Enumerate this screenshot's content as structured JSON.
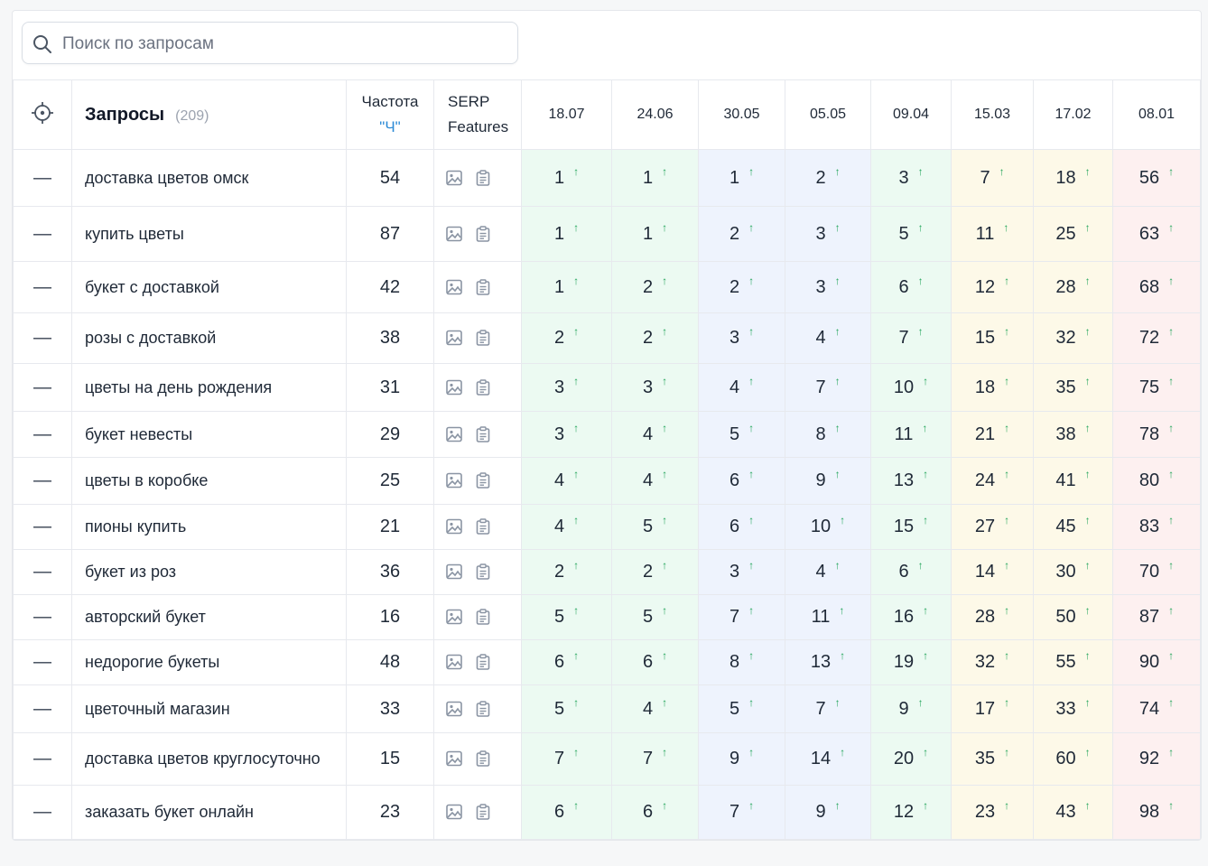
{
  "search": {
    "placeholder": "Поиск по запросам"
  },
  "header": {
    "queries_label": "Запросы",
    "queries_count": "(209)",
    "freq_label": "Частота",
    "freq_mode": "\"Ч\"",
    "serp_line1": "SERP",
    "serp_line2": "Features",
    "dates": [
      "18.07",
      "24.06",
      "30.05",
      "05.05",
      "09.04",
      "15.03",
      "17.02",
      "08.01"
    ]
  },
  "colors": {
    "col_bg": [
      "#ecfaf2",
      "#ecfaf2",
      "#eef3fd",
      "#eef3fd",
      "#ecfaf2",
      "#fdf9e8",
      "#fdf9e8",
      "#fdf0f0"
    ],
    "arrow": "#22a55a",
    "freq_mode": "#2b8ad6"
  },
  "rows": [
    {
      "dash": "—",
      "query": "доставка цветов омск",
      "freq": "54",
      "positions": [
        "1",
        "1",
        "1",
        "2",
        "3",
        "7",
        "18",
        "56"
      ]
    },
    {
      "dash": "—",
      "query": "купить цветы",
      "freq": "87",
      "positions": [
        "1",
        "1",
        "2",
        "3",
        "5",
        "11",
        "25",
        "63"
      ]
    },
    {
      "dash": "—",
      "query": "букет с доставкой",
      "freq": "42",
      "positions": [
        "1",
        "2",
        "2",
        "3",
        "6",
        "12",
        "28",
        "68"
      ]
    },
    {
      "dash": "—",
      "query": "розы с доставкой",
      "freq": "38",
      "positions": [
        "2",
        "2",
        "3",
        "4",
        "7",
        "15",
        "32",
        "72"
      ]
    },
    {
      "dash": "—",
      "query": "цветы на день рождения",
      "freq": "31",
      "positions": [
        "3",
        "3",
        "4",
        "7",
        "10",
        "18",
        "35",
        "75"
      ]
    },
    {
      "dash": "—",
      "query": "букет невесты",
      "freq": "29",
      "positions": [
        "3",
        "4",
        "5",
        "8",
        "11",
        "21",
        "38",
        "78"
      ]
    },
    {
      "dash": "—",
      "query": "цветы в коробке",
      "freq": "25",
      "positions": [
        "4",
        "4",
        "6",
        "9",
        "13",
        "24",
        "41",
        "80"
      ]
    },
    {
      "dash": "—",
      "query": "пионы купить",
      "freq": "21",
      "positions": [
        "4",
        "5",
        "6",
        "10",
        "15",
        "27",
        "45",
        "83"
      ]
    },
    {
      "dash": "—",
      "query": "букет из роз",
      "freq": "36",
      "positions": [
        "2",
        "2",
        "3",
        "4",
        "6",
        "14",
        "30",
        "70"
      ]
    },
    {
      "dash": "—",
      "query": "авторский букет",
      "freq": "16",
      "positions": [
        "5",
        "5",
        "7",
        "11",
        "16",
        "28",
        "50",
        "87"
      ]
    },
    {
      "dash": "—",
      "query": "недорогие букеты",
      "freq": "48",
      "positions": [
        "6",
        "6",
        "8",
        "13",
        "19",
        "32",
        "55",
        "90"
      ]
    },
    {
      "dash": "—",
      "query": "цветочный магазин",
      "freq": "33",
      "positions": [
        "5",
        "4",
        "5",
        "7",
        "9",
        "17",
        "33",
        "74"
      ]
    },
    {
      "dash": "—",
      "query": "доставка цветов круглосуточно",
      "freq": "15",
      "positions": [
        "7",
        "7",
        "9",
        "14",
        "20",
        "35",
        "60",
        "92"
      ]
    },
    {
      "dash": "—",
      "query": "заказать букет онлайн",
      "freq": "23",
      "positions": [
        "6",
        "6",
        "7",
        "9",
        "12",
        "23",
        "43",
        "98"
      ]
    }
  ],
  "trend_arrow": "↑"
}
